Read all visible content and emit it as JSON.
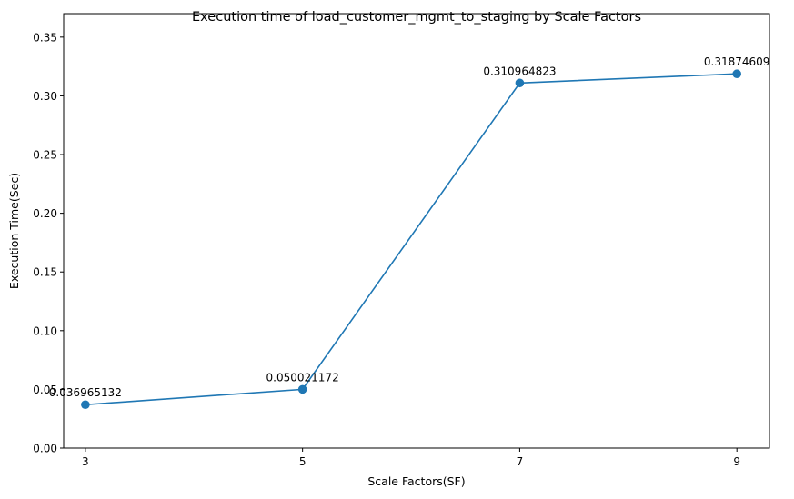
{
  "chart_data": {
    "type": "line",
    "title": "Execution time of load_customer_mgmt_to_staging by Scale Factors",
    "xlabel": "Scale Factors(SF)",
    "ylabel": "Execution Time(Sec)",
    "x": [
      3,
      5,
      7,
      9
    ],
    "x_tick_labels": [
      "3",
      "5",
      "7",
      "9"
    ],
    "xlim": [
      2.8,
      9.3
    ],
    "ylim": [
      0.0,
      0.37
    ],
    "y_ticks": [
      0.0,
      0.05,
      0.1,
      0.15,
      0.2,
      0.25,
      0.3,
      0.35
    ],
    "y_tick_labels": [
      "0.00",
      "0.05",
      "0.10",
      "0.15",
      "0.20",
      "0.25",
      "0.30",
      "0.35"
    ],
    "grid": false,
    "legend": "none",
    "series": [
      {
        "values": [
          0.036965132,
          0.050021172,
          0.310964823,
          0.31874609
        ],
        "data_labels": [
          "0.036965132",
          "0.050021172",
          "0.310964823",
          "0.31874609"
        ],
        "color": "#1f77b4",
        "marker": "circle"
      }
    ]
  }
}
